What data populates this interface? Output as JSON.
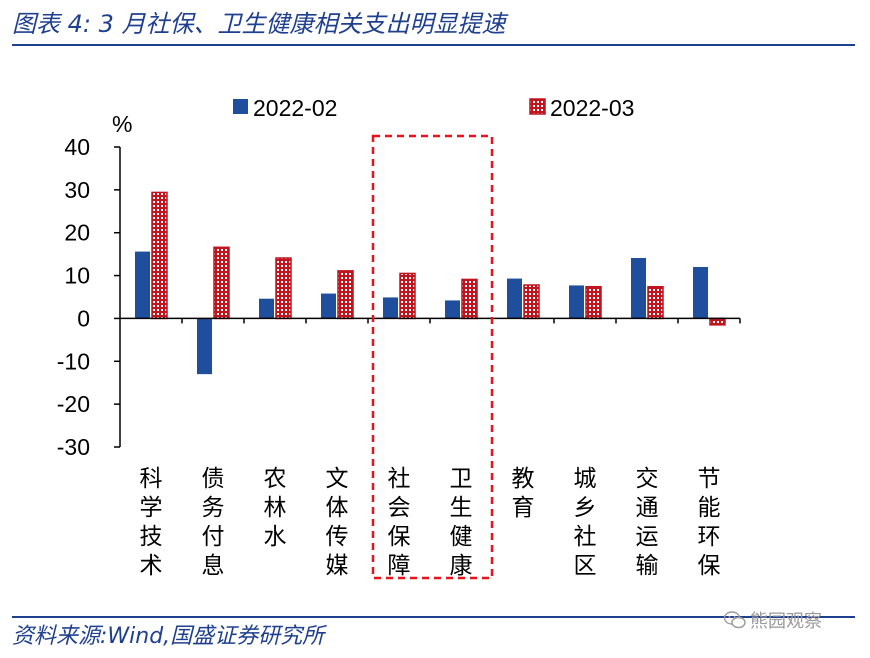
{
  "header": {
    "title": "图表 4:  3 月社保、卫生健康相关支出明显提速"
  },
  "footer": {
    "source": "资料来源:Wind,国盛证券研究所",
    "watermark": "熊园观察"
  },
  "colors": {
    "series_2022_02": "#1f4e9d",
    "series_2022_03": "#c0151f",
    "highlight": "#e8141d",
    "axis": "#000000",
    "brand": "#1f3f8f"
  },
  "chart_data": {
    "type": "bar",
    "title": "图表 4:  3 月社保、卫生健康相关支出明显提速",
    "ylabel": "%",
    "xlabel": "",
    "ylim": [
      -30,
      40
    ],
    "yticks": [
      40,
      30,
      20,
      10,
      0,
      -10,
      -20,
      -30
    ],
    "grid": false,
    "legend": "top",
    "categories": [
      "科学技术",
      "债务付息",
      "农林水",
      "文体传媒",
      "社会保障",
      "卫生健康",
      "教育",
      "城乡社区",
      "交通运输",
      "节能环保"
    ],
    "series": [
      {
        "name": "2022-02",
        "values": [
          15.6,
          -13.0,
          4.6,
          5.8,
          4.9,
          4.2,
          9.3,
          7.7,
          14.1,
          12.0
        ]
      },
      {
        "name": "2022-03",
        "values": [
          29.4,
          16.6,
          14.1,
          11.1,
          10.5,
          9.1,
          7.8,
          7.4,
          7.4,
          -1.5
        ]
      }
    ],
    "annotations": [
      "highlight: 社会保障, 卫生健康"
    ]
  }
}
